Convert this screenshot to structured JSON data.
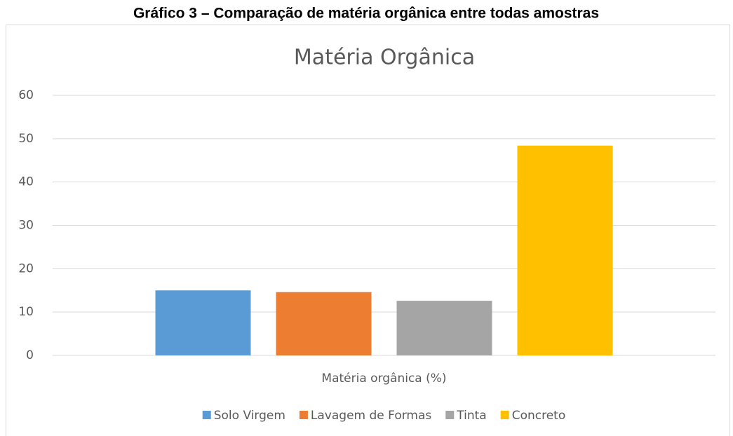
{
  "chart_data": {
    "type": "bar",
    "caption": "Gráfico 3 – Comparação de matéria orgânica entre todas amostras",
    "title": "Matéria Orgânica",
    "categories": [
      "Matéria orgânica (%)"
    ],
    "series": [
      {
        "name": "Solo Virgem",
        "color": "#5b9bd5",
        "values": [
          15.0
        ]
      },
      {
        "name": "Lavagem de Formas",
        "color": "#ed7d31",
        "values": [
          14.6
        ]
      },
      {
        "name": "Tinta",
        "color": "#a5a5a5",
        "values": [
          12.6
        ]
      },
      {
        "name": "Concreto",
        "color": "#ffc000",
        "values": [
          48.4
        ]
      }
    ],
    "ylim": [
      0,
      60
    ],
    "yticks": [
      0,
      10,
      20,
      30,
      40,
      50,
      60
    ],
    "grid": true,
    "legend": "bottom"
  }
}
